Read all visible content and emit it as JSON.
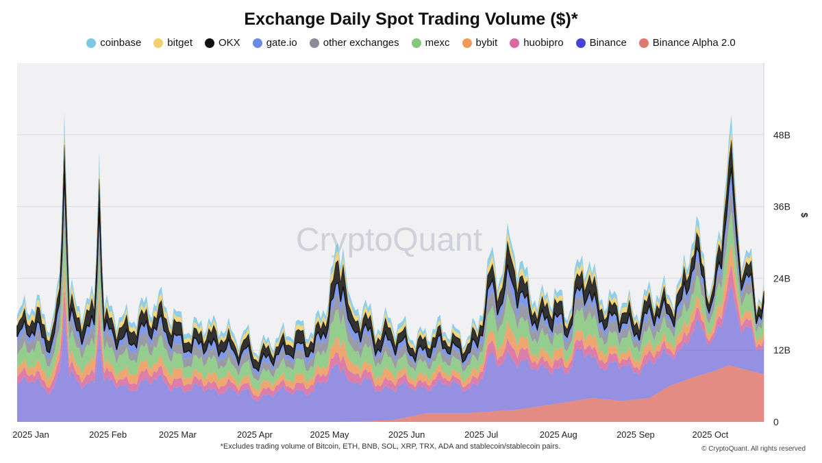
{
  "chart_data": {
    "type": "area",
    "stacked": true,
    "title": "Exchange Daily Spot Trading Volume ($)*",
    "ylabel": "$",
    "y_axis_position": "right",
    "ylim": [
      0,
      60
    ],
    "y_unit": "B",
    "yticks": [
      0,
      12,
      24,
      36,
      48
    ],
    "ytick_labels": [
      "0",
      "12B",
      "24B",
      "36B",
      "48B"
    ],
    "xticks": [
      "2025 Jan",
      "2025 Feb",
      "2025 Mar",
      "2025 Apr",
      "2025 May",
      "2025 Jun",
      "2025 Jul",
      "2025 Aug",
      "2025 Sep",
      "2025 Oct"
    ],
    "x_start": "2025-01-01",
    "x_end": "2025-10-28",
    "grid": true,
    "legend_position": "top",
    "watermark": "CryptoQuant",
    "footnote": "*Excludes trading volume of Bitcoin, ETH, BNB, SOL, XRP, TRX, ADA and stablecoin/stablecoin pairs.",
    "copyright": "© CryptoQuant. All rights reserved",
    "legend": [
      {
        "name": "coinbase",
        "color": "#7ec8e3"
      },
      {
        "name": "bitget",
        "color": "#f2d16b"
      },
      {
        "name": "OKX",
        "color": "#111111"
      },
      {
        "name": "gate.io",
        "color": "#6a8ae6"
      },
      {
        "name": "other exchanges",
        "color": "#8c8c98"
      },
      {
        "name": "mexc",
        "color": "#84c77a"
      },
      {
        "name": "bybit",
        "color": "#ef9a5a"
      },
      {
        "name": "huobipro",
        "color": "#d96a9c"
      },
      {
        "name": "Binance",
        "color": "#4a3fd6"
      },
      {
        "name": "Binance Alpha 2.0",
        "color": "#e07a6f"
      }
    ],
    "total": {
      "dates": [
        "2025-01-01",
        "2025-01-05",
        "2025-01-10",
        "2025-01-15",
        "2025-01-18",
        "2025-01-20",
        "2025-01-22",
        "2025-01-25",
        "2025-01-29",
        "2025-02-01",
        "2025-02-03",
        "2025-02-05",
        "2025-02-10",
        "2025-02-15",
        "2025-02-20",
        "2025-02-25",
        "2025-03-01",
        "2025-03-04",
        "2025-03-08",
        "2025-03-12",
        "2025-03-16",
        "2025-03-20",
        "2025-03-25",
        "2025-03-30",
        "2025-04-03",
        "2025-04-07",
        "2025-04-10",
        "2025-04-15",
        "2025-04-20",
        "2025-04-25",
        "2025-04-30",
        "2025-05-05",
        "2025-05-09",
        "2025-05-12",
        "2025-05-15",
        "2025-05-20",
        "2025-05-25",
        "2025-05-30",
        "2025-06-05",
        "2025-06-10",
        "2025-06-15",
        "2025-06-20",
        "2025-06-25",
        "2025-06-30",
        "2025-07-05",
        "2025-07-10",
        "2025-07-14",
        "2025-07-18",
        "2025-07-21",
        "2025-07-25",
        "2025-07-30",
        "2025-08-05",
        "2025-08-10",
        "2025-08-14",
        "2025-08-18",
        "2025-08-22",
        "2025-08-27",
        "2025-09-01",
        "2025-09-06",
        "2025-09-11",
        "2025-09-15",
        "2025-09-20",
        "2025-09-25",
        "2025-09-30",
        "2025-10-04",
        "2025-10-07",
        "2025-10-10",
        "2025-10-11",
        "2025-10-14",
        "2025-10-18",
        "2025-10-22",
        "2025-10-25",
        "2025-10-28"
      ],
      "values": [
        17,
        20,
        19,
        16,
        23,
        55,
        22,
        19,
        20,
        20,
        47,
        19,
        18,
        17,
        19,
        20,
        20,
        18,
        17,
        15,
        17,
        16,
        16,
        14,
        15,
        12,
        13,
        14,
        15,
        16,
        15,
        20,
        27,
        31,
        18,
        20,
        16,
        17,
        16,
        14,
        15,
        16,
        15,
        14,
        16,
        27,
        25,
        30,
        28,
        23,
        20,
        22,
        18,
        25,
        28,
        22,
        20,
        21,
        18,
        21,
        22,
        21,
        23,
        33,
        27,
        22,
        29,
        33,
        51,
        30,
        28,
        20,
        24
      ]
    },
    "binance_alpha": {
      "dates": [
        "2025-01-01",
        "2025-05-10",
        "2025-06-01",
        "2025-06-15",
        "2025-07-01",
        "2025-07-20",
        "2025-08-05",
        "2025-08-20",
        "2025-09-01",
        "2025-09-12",
        "2025-09-20",
        "2025-09-30",
        "2025-10-08",
        "2025-10-14",
        "2025-10-20",
        "2025-10-28"
      ],
      "values": [
        0,
        0,
        0.3,
        1.5,
        1.5,
        2.0,
        3.0,
        4.0,
        3.5,
        4.0,
        6.0,
        7.5,
        8.5,
        9.5,
        8.8,
        8.0
      ]
    },
    "share_of_total": {
      "Binance Alpha 2.0": "per binance_alpha series",
      "Binance": 0.34,
      "huobipro": 0.07,
      "bybit": 0.08,
      "mexc": 0.14,
      "other exchanges": 0.09,
      "gate.io": 0.07,
      "OKX": 0.11,
      "bitget": 0.05,
      "coinbase": 0.05
    }
  }
}
